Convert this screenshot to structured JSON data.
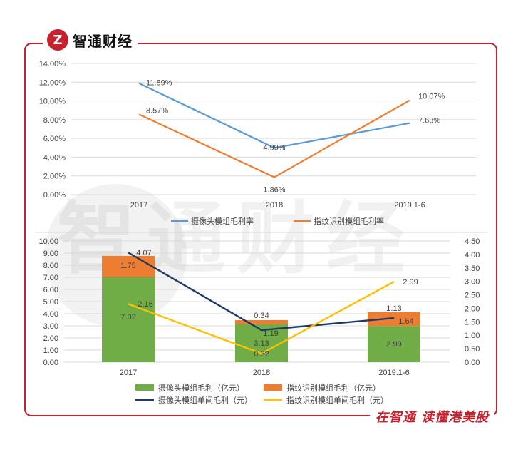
{
  "brand": {
    "logo_mark": "Z",
    "name": "智通财经",
    "slogan": "在智通 读懂港美股"
  },
  "colors": {
    "frame": "#c8202e",
    "camera_line": "#5b9bd5",
    "fingerprint_line": "#ed7d31",
    "camera_bar": "#70ad47",
    "fingerprint_bar": "#ed7d31",
    "camera_unit_line": "#203864",
    "fingerprint_unit_line": "#ffc000"
  },
  "chart_data": [
    {
      "type": "line",
      "categories": [
        "2017",
        "2018",
        "2019.1-6"
      ],
      "ylim": [
        0,
        14
      ],
      "y_ticks": [
        "0.00%",
        "2.00%",
        "4.00%",
        "6.00%",
        "8.00%",
        "10.00%",
        "12.00%",
        "14.00%"
      ],
      "grid": true,
      "legend_position": "bottom",
      "series": [
        {
          "name": "摄像头模组毛利率",
          "values": [
            11.89,
            4.99,
            7.63
          ],
          "labels": [
            "11.89%",
            "4.99%",
            "7.63%"
          ]
        },
        {
          "name": "指纹识别模组毛利率",
          "values": [
            8.57,
            1.86,
            10.07
          ],
          "labels": [
            "8.57%",
            "1.86%",
            "10.07%"
          ]
        }
      ]
    },
    {
      "type": "bar",
      "stacked": true,
      "categories": [
        "2017",
        "2018",
        "2019.1-6"
      ],
      "ylim": [
        0,
        10
      ],
      "y_ticks": [
        "0.00",
        "1.00",
        "2.00",
        "3.00",
        "4.00",
        "5.00",
        "6.00",
        "7.00",
        "8.00",
        "9.00",
        "10.00"
      ],
      "y2lim": [
        0,
        4.5
      ],
      "y2_ticks": [
        "0.00",
        "0.50",
        "1.00",
        "1.50",
        "2.00",
        "2.50",
        "3.00",
        "3.50",
        "4.00",
        "4.50"
      ],
      "grid": true,
      "legend_position": "bottom",
      "bar_series": [
        {
          "name": "摄像头模组毛利（亿元）",
          "values": [
            7.02,
            3.13,
            2.99
          ],
          "labels": [
            "7.02",
            "3.13",
            "2.99"
          ]
        },
        {
          "name": "指纹识别模组毛利（亿元）",
          "values": [
            1.75,
            0.34,
            1.13
          ],
          "labels": [
            "1.75",
            "0.34",
            "1.13"
          ]
        }
      ],
      "line_series": [
        {
          "name": "摄像头模组单间毛利（元）",
          "axis": "right",
          "values": [
            4.07,
            1.19,
            1.64
          ],
          "labels": [
            "4.07",
            "1.19",
            "1.64"
          ]
        },
        {
          "name": "指纹识别模组单间毛利（元）",
          "axis": "right",
          "values": [
            2.16,
            0.32,
            2.99
          ],
          "labels": [
            "2.16",
            "0.32",
            "2.99"
          ]
        }
      ]
    }
  ]
}
